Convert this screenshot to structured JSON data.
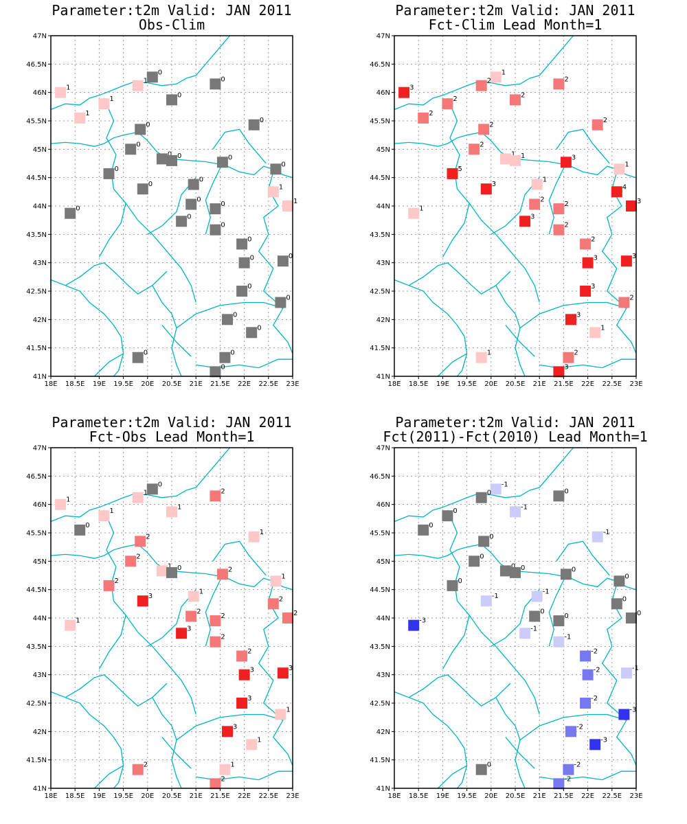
{
  "map": {
    "lon_range": [
      18,
      23
    ],
    "lat_range": [
      41,
      47
    ],
    "lon_ticks": [
      "18E",
      "18.5E",
      "19E",
      "19.5E",
      "20E",
      "20.5E",
      "21E",
      "21.5E",
      "22E",
      "22.5E",
      "23E"
    ],
    "lat_ticks": [
      "41N",
      "41.5N",
      "42N",
      "42.5N",
      "43N",
      "43.5N",
      "44N",
      "44.5N",
      "45N",
      "45.5N",
      "46N",
      "46.5N",
      "47N"
    ],
    "grid": true,
    "coastline_color": "#00b4c0",
    "stations": [
      {
        "lon": 18.2,
        "lat": 46.0
      },
      {
        "lon": 20.1,
        "lat": 46.27
      },
      {
        "lon": 19.8,
        "lat": 46.12
      },
      {
        "lon": 21.4,
        "lat": 46.15
      },
      {
        "lon": 19.1,
        "lat": 45.8
      },
      {
        "lon": 20.5,
        "lat": 45.87
      },
      {
        "lon": 18.6,
        "lat": 45.55
      },
      {
        "lon": 22.2,
        "lat": 45.43
      },
      {
        "lon": 19.85,
        "lat": 45.35
      },
      {
        "lon": 19.65,
        "lat": 45.0
      },
      {
        "lon": 20.3,
        "lat": 44.83
      },
      {
        "lon": 20.5,
        "lat": 44.8
      },
      {
        "lon": 21.55,
        "lat": 44.77
      },
      {
        "lon": 22.65,
        "lat": 44.65
      },
      {
        "lon": 19.2,
        "lat": 44.57
      },
      {
        "lon": 20.95,
        "lat": 44.38
      },
      {
        "lon": 19.9,
        "lat": 44.3
      },
      {
        "lon": 22.6,
        "lat": 44.25
      },
      {
        "lon": 20.9,
        "lat": 44.03
      },
      {
        "lon": 22.9,
        "lat": 44.0
      },
      {
        "lon": 21.4,
        "lat": 43.95
      },
      {
        "lon": 18.4,
        "lat": 43.87
      },
      {
        "lon": 20.7,
        "lat": 43.73
      },
      {
        "lon": 21.4,
        "lat": 43.58
      },
      {
        "lon": 21.95,
        "lat": 43.33
      },
      {
        "lon": 22.0,
        "lat": 43.0
      },
      {
        "lon": 22.8,
        "lat": 43.03
      },
      {
        "lon": 21.95,
        "lat": 42.5
      },
      {
        "lon": 22.75,
        "lat": 42.3
      },
      {
        "lon": 21.65,
        "lat": 42.0
      },
      {
        "lon": 22.15,
        "lat": 41.77
      },
      {
        "lon": 19.8,
        "lat": 41.33
      },
      {
        "lon": 21.6,
        "lat": 41.33
      },
      {
        "lon": 21.4,
        "lat": 41.08
      }
    ],
    "legend_colors": {
      "-5": "#00008b",
      "-4": "#00008b",
      "-3": "#3333ee",
      "-2": "#7777f0",
      "-1": "#ccccfa",
      "0": "#787878",
      "1": "#ffc8c8",
      "2": "#f47878",
      "3": "#f02020",
      "4": "#f02020",
      "5": "#f02020"
    }
  },
  "panels": [
    {
      "title_line1": "Parameter:t2m Valid: JAN 2011",
      "title_line2": "Obs-Clim",
      "values": [
        1,
        0,
        1,
        0,
        1,
        0,
        1,
        0,
        0,
        0,
        0,
        0,
        0,
        0,
        0,
        0,
        0,
        1,
        0,
        1,
        0,
        0,
        0,
        0,
        0,
        0,
        0,
        0,
        0,
        0,
        0,
        0,
        0,
        0
      ]
    },
    {
      "title_line1": "Parameter:t2m Valid: JAN 2011",
      "title_line2": "Fct-Clim Lead Month=1",
      "values": [
        3,
        1,
        2,
        2,
        2,
        2,
        2,
        2,
        2,
        2,
        1,
        1,
        3,
        1,
        5,
        1,
        3,
        4,
        2,
        3,
        2,
        1,
        3,
        2,
        2,
        3,
        3,
        3,
        2,
        3,
        1,
        1,
        2,
        3
      ]
    },
    {
      "title_line1": "Parameter:t2m Valid: JAN 2011",
      "title_line2": "Fct-Obs Lead Month=1",
      "values": [
        1,
        0,
        1,
        2,
        1,
        1,
        0,
        1,
        2,
        2,
        1,
        0,
        2,
        1,
        2,
        1,
        3,
        2,
        2,
        2,
        2,
        1,
        3,
        2,
        2,
        3,
        3,
        3,
        1,
        3,
        1,
        2,
        1,
        2
      ]
    },
    {
      "title_line1": "Parameter:t2m Valid: JAN 2011",
      "title_line2": "Fct(2011)-Fct(2010) Lead Month=1",
      "values": [
        null,
        -1,
        0,
        0,
        0,
        -1,
        0,
        -1,
        0,
        0,
        0,
        0,
        0,
        0,
        0,
        -1,
        -1,
        0,
        0,
        0,
        0,
        -3,
        -1,
        -1,
        -2,
        -2,
        -1,
        -2,
        -3,
        -2,
        -3,
        0,
        -2,
        -2
      ]
    }
  ]
}
